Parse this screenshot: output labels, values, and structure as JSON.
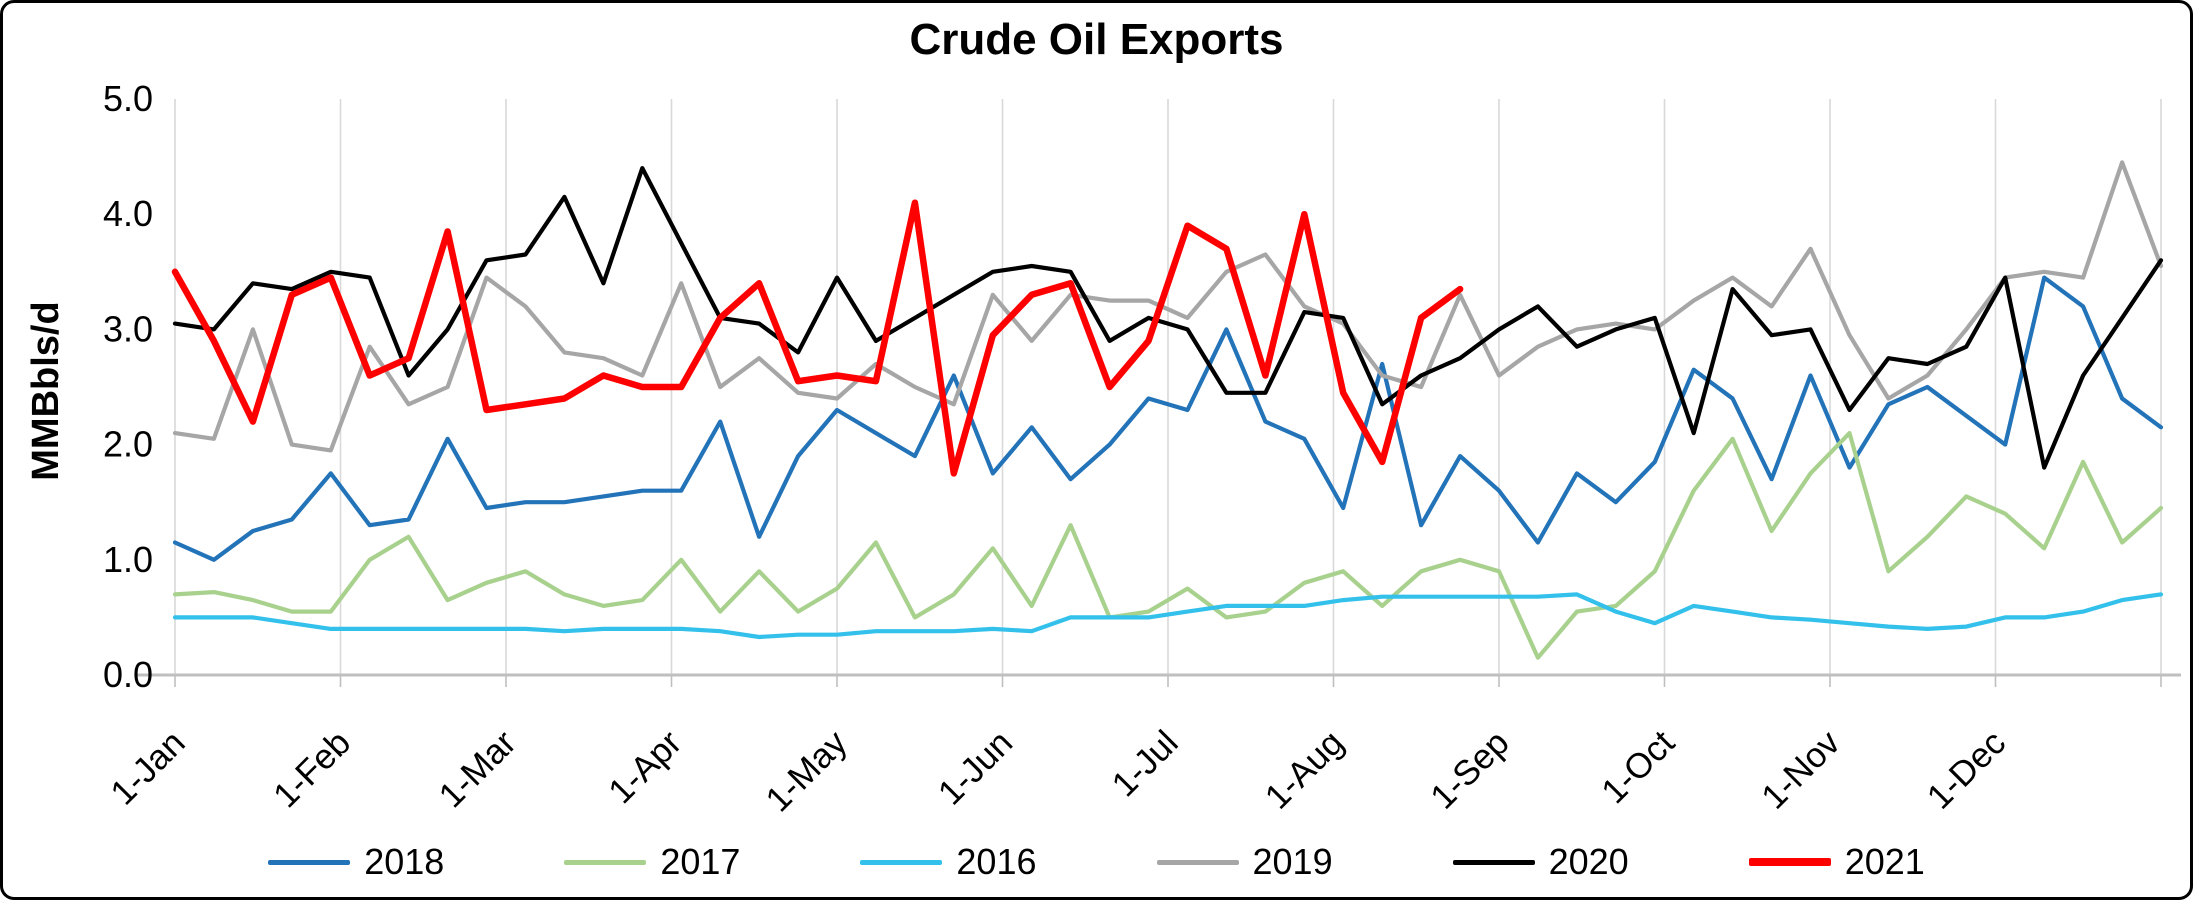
{
  "chart_data": {
    "type": "line",
    "title": "Crude Oil Exports",
    "xlabel": "",
    "ylabel": "MMBbls/d",
    "ylim": [
      0.0,
      5.0
    ],
    "y_ticks": [
      0.0,
      1.0,
      2.0,
      3.0,
      4.0,
      5.0
    ],
    "y_tick_labels": [
      "0.0",
      "1.0",
      "2.0",
      "3.0",
      "4.0",
      "5.0"
    ],
    "x_tick_labels": [
      "1-Jan",
      "1-Feb",
      "1-Mar",
      "1-Apr",
      "1-May",
      "1-Jun",
      "1-Jul",
      "1-Aug",
      "1-Sep",
      "1-Oct",
      "1-Nov",
      "1-Dec"
    ],
    "x_unit": "weekly points, Jan through Dec",
    "n_points": 52,
    "grid": "vertical gridlines at month boundaries, horizontal axis line at 0",
    "legend_position": "bottom",
    "series": [
      {
        "name": "2018",
        "color": "#2373b9",
        "values": [
          1.15,
          1.0,
          1.25,
          1.35,
          1.75,
          1.3,
          1.35,
          2.05,
          1.45,
          1.5,
          1.5,
          1.55,
          1.6,
          1.6,
          2.2,
          1.2,
          1.9,
          2.3,
          2.1,
          1.9,
          2.6,
          1.75,
          2.15,
          1.7,
          2.0,
          2.4,
          2.3,
          3.0,
          2.2,
          2.05,
          1.45,
          2.7,
          1.3,
          1.9,
          1.6,
          1.15,
          1.75,
          1.5,
          1.85,
          2.65,
          2.4,
          1.7,
          2.6,
          1.8,
          2.35,
          2.5,
          2.25,
          2.0,
          3.45,
          3.2,
          2.4,
          2.15
        ]
      },
      {
        "name": "2017",
        "color": "#a9d18e",
        "values": [
          0.7,
          0.72,
          0.65,
          0.55,
          0.55,
          1.0,
          1.2,
          0.65,
          0.8,
          0.9,
          0.7,
          0.6,
          0.65,
          1.0,
          0.55,
          0.9,
          0.55,
          0.75,
          1.15,
          0.5,
          0.7,
          1.1,
          0.6,
          1.3,
          0.5,
          0.55,
          0.75,
          0.5,
          0.55,
          0.8,
          0.9,
          0.6,
          0.9,
          1.0,
          0.9,
          0.15,
          0.55,
          0.6,
          0.9,
          1.6,
          2.05,
          1.25,
          1.75,
          2.1,
          0.9,
          1.2,
          1.55,
          1.4,
          1.1,
          1.85,
          1.15,
          1.45
        ]
      },
      {
        "name": "2016",
        "color": "#33c1ec",
        "values": [
          0.5,
          0.5,
          0.5,
          0.45,
          0.4,
          0.4,
          0.4,
          0.4,
          0.4,
          0.4,
          0.38,
          0.4,
          0.4,
          0.4,
          0.38,
          0.33,
          0.35,
          0.35,
          0.38,
          0.38,
          0.38,
          0.4,
          0.38,
          0.5,
          0.5,
          0.5,
          0.55,
          0.6,
          0.6,
          0.6,
          0.65,
          0.68,
          0.68,
          0.68,
          0.68,
          0.68,
          0.7,
          0.55,
          0.45,
          0.6,
          0.55,
          0.5,
          0.48,
          0.45,
          0.42,
          0.4,
          0.42,
          0.5,
          0.5,
          0.55,
          0.65,
          0.7
        ]
      },
      {
        "name": "2019",
        "color": "#a6a6a6",
        "values": [
          2.1,
          2.05,
          3.0,
          2.0,
          1.95,
          2.85,
          2.35,
          2.5,
          3.45,
          3.2,
          2.8,
          2.75,
          2.6,
          3.4,
          2.5,
          2.75,
          2.45,
          2.4,
          2.7,
          2.5,
          2.35,
          3.3,
          2.9,
          3.3,
          3.25,
          3.25,
          3.1,
          3.5,
          3.65,
          3.2,
          3.05,
          2.6,
          2.5,
          3.3,
          2.6,
          2.85,
          3.0,
          3.05,
          3.0,
          3.25,
          3.45,
          3.2,
          3.7,
          2.95,
          2.4,
          2.6,
          3.0,
          3.45,
          3.5,
          3.45,
          4.45,
          3.55
        ]
      },
      {
        "name": "2020",
        "color": "#000000",
        "values": [
          3.05,
          3.0,
          3.4,
          3.35,
          3.5,
          3.45,
          2.6,
          3.0,
          3.6,
          3.65,
          4.15,
          3.4,
          4.4,
          3.75,
          3.1,
          3.05,
          2.8,
          3.45,
          2.9,
          3.1,
          3.3,
          3.5,
          3.55,
          3.5,
          2.9,
          3.1,
          3.0,
          2.45,
          2.45,
          3.15,
          3.1,
          2.35,
          2.6,
          2.75,
          3.0,
          3.2,
          2.85,
          3.0,
          3.1,
          2.1,
          3.35,
          2.95,
          3.0,
          2.3,
          2.75,
          2.7,
          2.85,
          3.45,
          1.8,
          2.6,
          3.1,
          3.6
        ]
      },
      {
        "name": "2021",
        "color": "#ff0000",
        "thick": true,
        "values": [
          3.5,
          2.9,
          2.2,
          3.3,
          3.45,
          2.6,
          2.75,
          3.85,
          2.3,
          2.35,
          2.4,
          2.6,
          2.5,
          2.5,
          3.1,
          3.4,
          2.55,
          2.6,
          2.55,
          4.1,
          1.75,
          2.95,
          3.3,
          3.4,
          2.5,
          2.9,
          3.9,
          3.7,
          2.6,
          4.0,
          2.45,
          1.85,
          3.1,
          3.35,
          null,
          null,
          null,
          null,
          null,
          null,
          null,
          null,
          null,
          null,
          null,
          null,
          null,
          null,
          null,
          null,
          null,
          null
        ]
      }
    ]
  }
}
